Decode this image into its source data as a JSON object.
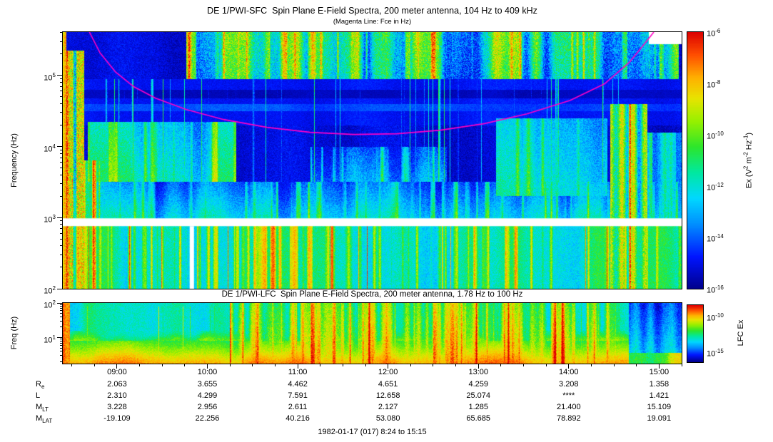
{
  "page": {
    "footer": "1982-01-17 (017) 8:24 to 15:15",
    "background": "#ffffff"
  },
  "colormap": [
    [
      0.0,
      "#00008f"
    ],
    [
      0.12,
      "#0014ff"
    ],
    [
      0.25,
      "#0090ff"
    ],
    [
      0.35,
      "#00d8ff"
    ],
    [
      0.45,
      "#00e8a0"
    ],
    [
      0.55,
      "#2ce62c"
    ],
    [
      0.65,
      "#96f000"
    ],
    [
      0.74,
      "#e8e400"
    ],
    [
      0.82,
      "#ffb000"
    ],
    [
      0.91,
      "#ff4e00"
    ],
    [
      1.0,
      "#dc0000"
    ]
  ],
  "time_axis": {
    "start_hour": 8.4,
    "end_hour": 15.25,
    "tick_hours": [
      9,
      10,
      11,
      12,
      13,
      14,
      15
    ],
    "tick_labels": [
      "09:00",
      "10:00",
      "11:00",
      "12:00",
      "13:00",
      "14:00",
      "15:00"
    ],
    "minor_step_hours": 0.25
  },
  "main_panel": {
    "title": "DE 1/PWI-SFC  Spin Plane E-Field Spectra, 200 meter antenna, 104 Hz to 409 kHz",
    "subtitle": "(Magenta Line: Fce in Hz)",
    "ylabel": "Frequency (Hz)",
    "yticks": [
      {
        "log": 2,
        "exp": "2"
      },
      {
        "log": 3,
        "exp": "3"
      },
      {
        "log": 4,
        "exp": "4"
      },
      {
        "log": 5,
        "exp": "5"
      }
    ]
  },
  "lfc_panel": {
    "title": "DE 1/PWI-LFC  Spin Plane E-Field Spectra, 200 meter antenna, 1.78 Hz to 100 Hz",
    "ylabel": "Freq (Hz)",
    "yticks": [
      {
        "log": 1,
        "exp": "1"
      },
      {
        "log": 2,
        "exp": "2"
      }
    ]
  },
  "main_colorbar": {
    "label_parts": [
      [
        "t",
        "Ex (V"
      ],
      [
        "sup",
        "2"
      ],
      [
        "t",
        " m"
      ],
      [
        "sup",
        "-2"
      ],
      [
        "t",
        " Hz"
      ],
      [
        "sup",
        "-1"
      ],
      [
        "t",
        ")"
      ]
    ],
    "ticks": [
      {
        "exp": "-6",
        "pos": 0
      },
      {
        "exp": "-8",
        "pos": 0.2
      },
      {
        "exp": "-10",
        "pos": 0.4
      },
      {
        "exp": "-12",
        "pos": 0.6
      },
      {
        "exp": "-14",
        "pos": 0.8
      },
      {
        "exp": "-16",
        "pos": 1
      }
    ]
  },
  "lfc_colorbar": {
    "label": "LFC Ex",
    "ticks": [
      {
        "exp": "-10",
        "pos": 0.2
      },
      {
        "exp": "-15",
        "pos": 0.82
      }
    ]
  },
  "ephemeris": {
    "rows": [
      {
        "label_base": "R",
        "label_sub": "e",
        "values": [
          "2.063",
          "3.655",
          "4.462",
          "4.651",
          "4.259",
          "3.208",
          "1.358"
        ]
      },
      {
        "label_base": "L",
        "label_sub": "",
        "values": [
          "2.310",
          "4.299",
          "7.591",
          "12.658",
          "25.074",
          "****",
          "1.421"
        ]
      },
      {
        "label_base": "M",
        "label_sub": "LT",
        "values": [
          "3.228",
          "2.956",
          "2.611",
          "2.127",
          "1.285",
          "21.400",
          "15.109"
        ]
      },
      {
        "label_base": "M",
        "label_sub": "LAT",
        "values": [
          "-19.109",
          "22.256",
          "40.216",
          "53.080",
          "65.685",
          "78.892",
          "19.091"
        ]
      }
    ]
  },
  "chart_data": [
    {
      "id": "sfc",
      "type": "heatmap",
      "title": "DE 1/PWI-SFC Spin Plane E-Field Spectra, 200 meter antenna, 104 Hz to 409 kHz",
      "x_start": "08:24",
      "x_end": "15:15",
      "x_ticks": [
        "09:00",
        "10:00",
        "11:00",
        "12:00",
        "13:00",
        "14:00",
        "15:00"
      ],
      "ylabel": "Frequency (Hz)",
      "y_scale": "log",
      "y_range_hz": [
        104,
        409000
      ],
      "log_min": 2.0,
      "log_max": 5.61,
      "colorbar": {
        "label": "Ex (V^2 m^-2 Hz^-1)",
        "range": [
          1e-16,
          1e-06
        ],
        "scale": "log"
      },
      "seed": 42,
      "overlay_line": {
        "name": "Fce electron cyclotron frequency",
        "color": "#ff00c8",
        "points": [
          [
            0.043,
            5.61
          ],
          [
            0.06,
            5.32
          ],
          [
            0.085,
            5.05
          ],
          [
            0.115,
            4.84
          ],
          [
            0.15,
            4.68
          ],
          [
            0.2,
            4.52
          ],
          [
            0.26,
            4.38
          ],
          [
            0.33,
            4.27
          ],
          [
            0.4,
            4.2
          ],
          [
            0.47,
            4.17
          ],
          [
            0.54,
            4.18
          ],
          [
            0.61,
            4.23
          ],
          [
            0.68,
            4.32
          ],
          [
            0.75,
            4.46
          ],
          [
            0.82,
            4.65
          ],
          [
            0.875,
            4.88
          ],
          [
            0.915,
            5.18
          ],
          [
            0.945,
            5.5
          ],
          [
            0.955,
            5.61
          ]
        ]
      },
      "features": [
        {
          "name": "background",
          "mode": "set",
          "t": [
            0,
            1
          ],
          "f": [
            2.0,
            5.61
          ],
          "base": 0.08,
          "amp": 0.04,
          "jitter": 0.05,
          "scale": 40
        },
        {
          "name": "band-stripe-region",
          "mode": "set",
          "t": [
            0,
            1
          ],
          "f": [
            4.3,
            4.95
          ],
          "base": 0.11,
          "amp": 0.03,
          "jitter": 0.03,
          "scale": 60
        },
        {
          "name": "band-stripe-light",
          "mode": "set",
          "t": [
            0,
            1
          ],
          "f": [
            4.5,
            4.6
          ],
          "base": 0.17,
          "amp": 0.03,
          "jitter": 0.03,
          "scale": 50
        },
        {
          "name": "band-stripe-dark",
          "mode": "set",
          "t": [
            0,
            1
          ],
          "f": [
            4.68,
            4.8
          ],
          "base": 0.05,
          "amp": 0.02,
          "jitter": 0.02,
          "scale": 50
        },
        {
          "name": "low-band",
          "t": [
            0,
            1
          ],
          "f": [
            2.0,
            2.95
          ],
          "base": 0.44,
          "amp": 0.1,
          "jitter": 0.07,
          "streak": 0.38,
          "streak_th": 0.6,
          "scale": 30,
          "streak_scale": 4
        },
        {
          "name": "low-band-hot-streaks",
          "t": [
            0,
            1
          ],
          "f": [
            2.0,
            2.9
          ],
          "base": 0.0,
          "jitter": 0.05,
          "streak": 0.95,
          "streak_th": 0.86,
          "streak_scale": 3
        },
        {
          "name": "mid-band",
          "t": [
            0,
            1
          ],
          "f": [
            2.95,
            3.5
          ],
          "base": 0.36,
          "amp": 0.12,
          "jitter": 0.07,
          "streak": 0.3,
          "streak_th": 0.65,
          "scale": 22,
          "streak_scale": 4,
          "grad": -0.18
        },
        {
          "name": "left-mid-patch",
          "t": [
            0.04,
            0.28
          ],
          "f": [
            3.5,
            4.35
          ],
          "base": 0.4,
          "amp": 0.12,
          "jitter": 0.08,
          "streak": 0.25,
          "streak_th": 0.6,
          "scale": 26,
          "streak_scale": 5,
          "grad": -0.1
        },
        {
          "name": "center-patch",
          "t": [
            0.4,
            0.62
          ],
          "f": [
            3.5,
            4.0
          ],
          "base": 0.28,
          "amp": 0.12,
          "jitter": 0.08,
          "streak": 0.3,
          "streak_th": 0.65,
          "scale": 20,
          "streak_scale": 4,
          "grad": -0.12
        },
        {
          "name": "right-blob",
          "t": [
            0.7,
            0.88
          ],
          "f": [
            3.3,
            4.4
          ],
          "base": 0.42,
          "amp": 0.12,
          "jitter": 0.08,
          "streak": 0.25,
          "streak_th": 0.65,
          "scale": 24,
          "streak_scale": 5,
          "grad": -0.1
        },
        {
          "name": "sparse-vertical-streaks",
          "t": [
            0.03,
            0.9
          ],
          "f": [
            3.5,
            4.95
          ],
          "base": 0.0,
          "jitter": 0.06,
          "streak": 0.55,
          "streak_th": 0.84,
          "streak_scale": 2
        },
        {
          "name": "akr-band",
          "t": [
            0.2,
            0.995
          ],
          "f": [
            4.95,
            5.61
          ],
          "base": 0.4,
          "amp": 0.28,
          "jitter": 0.13,
          "streak": 0.35,
          "streak_th": 0.7,
          "scale": 14,
          "streak_scale": 4,
          "grad": 0.05
        },
        {
          "name": "left-edge-line",
          "t": [
            0,
            0.006
          ],
          "f": [
            2.0,
            5.61
          ],
          "base": 0.75,
          "amp": 0.15,
          "jitter": 0.1,
          "scale": 3
        },
        {
          "name": "left-burst",
          "t": [
            0.006,
            0.035
          ],
          "f": [
            2.0,
            5.35
          ],
          "base": 0.5,
          "amp": 0.25,
          "jitter": 0.18,
          "streak": 0.45,
          "streak_th": 0.55,
          "scale": 6,
          "streak_scale": 2
        },
        {
          "name": "left-burst-low",
          "t": [
            0.035,
            0.075
          ],
          "f": [
            2.0,
            3.8
          ],
          "base": 0.45,
          "amp": 0.2,
          "jitter": 0.1,
          "streak": 0.5,
          "streak_th": 0.6,
          "scale": 8,
          "streak_scale": 3
        },
        {
          "name": "right-burst",
          "t": [
            0.885,
            0.945
          ],
          "f": [
            2.0,
            4.6
          ],
          "base": 0.5,
          "amp": 0.25,
          "jitter": 0.12,
          "streak": 0.5,
          "streak_th": 0.55,
          "scale": 8,
          "streak_scale": 3
        },
        {
          "name": "right-tail",
          "t": [
            0.945,
            1.0
          ],
          "f": [
            2.0,
            4.2
          ],
          "base": 0.32,
          "amp": 0.15,
          "jitter": 0.08,
          "streak": 0.3,
          "streak_th": 0.7,
          "scale": 12,
          "streak_scale": 3
        }
      ],
      "white_bars": [
        {
          "t": [
            0,
            1
          ],
          "f": [
            2.88,
            2.99
          ]
        },
        {
          "t": [
            0.205,
            0.212
          ],
          "f": [
            2.0,
            2.88
          ]
        },
        {
          "t": [
            0.947,
            1.0
          ],
          "f": [
            5.44,
            5.61
          ]
        }
      ]
    },
    {
      "id": "lfc",
      "type": "heatmap",
      "title": "DE 1/PWI-LFC Spin Plane E-Field Spectra, 200 meter antenna, 1.78 Hz to 100 Hz",
      "x_start": "08:24",
      "x_end": "15:15",
      "x_ticks": [
        "09:00",
        "10:00",
        "11:00",
        "12:00",
        "13:00",
        "14:00",
        "15:00"
      ],
      "ylabel": "Freq (Hz)",
      "y_scale": "log",
      "y_range_hz": [
        1.78,
        100
      ],
      "log_min": 0.25,
      "log_max": 2.0,
      "colorbar": {
        "label": "LFC Ex",
        "ticks_shown": [
          1e-10,
          1e-15
        ],
        "scale": "log"
      },
      "seed": 7,
      "features": [
        {
          "name": "background",
          "mode": "set",
          "t": [
            0,
            1
          ],
          "f": [
            0.25,
            2.0
          ],
          "base": 0.42,
          "amp": 0.08,
          "jitter": 0.06,
          "scale": 18
        },
        {
          "name": "bottom-red-band",
          "t": [
            0,
            1
          ],
          "f": [
            0.25,
            0.9
          ],
          "base": 0.84,
          "amp": 0.08,
          "jitter": 0.05,
          "grad": -0.28,
          "scale": 30
        },
        {
          "name": "orange-fade-band",
          "t": [
            0,
            1
          ],
          "f": [
            0.9,
            1.2
          ],
          "base": 0.58,
          "amp": 0.1,
          "jitter": 0.06,
          "grad": -0.2,
          "scale": 20
        },
        {
          "name": "center-red-columns",
          "t": [
            0.27,
            0.73
          ],
          "f": [
            0.25,
            2.0
          ],
          "base": 0.68,
          "amp": 0.22,
          "jitter": 0.08,
          "streak": 0.3,
          "streak_th": 0.6,
          "scale": 8,
          "streak_scale": 3,
          "grad": -0.12
        },
        {
          "name": "late-red-columns",
          "t": [
            0.73,
            0.9
          ],
          "f": [
            0.25,
            2.0
          ],
          "base": 0.6,
          "amp": 0.25,
          "jitter": 0.08,
          "streak": 0.3,
          "streak_th": 0.6,
          "scale": 8,
          "streak_scale": 3,
          "grad": -0.15
        },
        {
          "name": "left-edge-burst",
          "t": [
            0,
            0.012
          ],
          "f": [
            0.25,
            2.0
          ],
          "base": 0.85,
          "amp": 0.1,
          "jitter": 0.08,
          "scale": 4
        },
        {
          "name": "left-red-streaks",
          "t": [
            0.012,
            0.27
          ],
          "f": [
            0.25,
            1.9
          ],
          "base": 0.0,
          "jitter": 0.05,
          "streak": 0.75,
          "streak_th": 0.82,
          "streak_scale": 2
        },
        {
          "name": "right-end",
          "mode": "set",
          "t": [
            0.915,
            1.0
          ],
          "f": [
            0.25,
            2.0
          ],
          "base": 0.38,
          "amp": 0.12,
          "jitter": 0.07,
          "scale": 10,
          "grad": -0.2
        },
        {
          "name": "right-end-bottom",
          "t": [
            0.915,
            1.0
          ],
          "f": [
            0.25,
            0.55
          ],
          "base": 0.62,
          "amp": 0.15,
          "jitter": 0.06,
          "scale": 10
        }
      ],
      "white_bars": []
    }
  ]
}
